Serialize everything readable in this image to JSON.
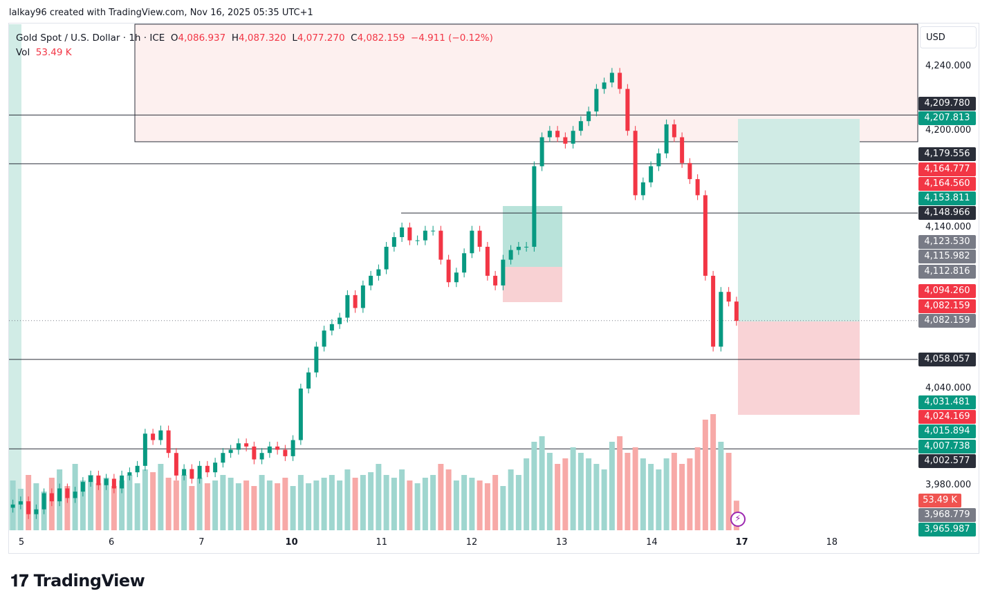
{
  "credit": "lalkay96 created with TradingView.com, Nov 16, 2025 05:35 UTC+1",
  "legend": {
    "symbol": "Gold Spot / U.S. Dollar · 1h · ICE",
    "o_label": "O",
    "o": "4,086.937",
    "h_label": "H",
    "h": "4,087.320",
    "l_label": "L",
    "l": "4,077.270",
    "c_label": "C",
    "c": "4,082.159",
    "change": "−4.911 (−0.12%)",
    "vol_label": "Vol",
    "vol": "53.49 K"
  },
  "currency": "USD",
  "logo": "TradingView",
  "colors": {
    "up": "#089981",
    "down": "#f23645",
    "vol_up": "#9fd6cf",
    "vol_down": "#f7a9a7",
    "drawing": "#2a2e39",
    "gray": "#787b86"
  },
  "chart_data": {
    "type": "candlestick",
    "symbol": "XAUUSD",
    "timeframe": "1h",
    "ylim": [
      3962,
      4250
    ],
    "x_ticks": [
      {
        "label": "5",
        "bold": false
      },
      {
        "label": "6",
        "bold": false
      },
      {
        "label": "7",
        "bold": false
      },
      {
        "label": "10",
        "bold": true
      },
      {
        "label": "11",
        "bold": false
      },
      {
        "label": "12",
        "bold": false
      },
      {
        "label": "13",
        "bold": false
      },
      {
        "label": "14",
        "bold": false
      },
      {
        "label": "17",
        "bold": true
      },
      {
        "label": "18",
        "bold": false
      }
    ],
    "y_ticks": [
      {
        "value": 4240,
        "label": "4,240.000"
      },
      {
        "value": 4200,
        "label": "4,200.000"
      },
      {
        "value": 4140,
        "label": "4,140.000"
      },
      {
        "value": 4040,
        "label": "4,040.000"
      },
      {
        "value": 3980,
        "label": "3,980.000"
      }
    ],
    "close": [
      3968,
      3970,
      3962,
      3965,
      3975,
      3970,
      3978,
      3972,
      3976,
      3982,
      3986,
      3980,
      3984,
      3978,
      3986,
      3988,
      3992,
      4012,
      4008,
      4014,
      4000,
      3986,
      3990,
      3984,
      3992,
      3988,
      3994,
      4000,
      4002,
      4006,
      4004,
      3996,
      4000,
      4004,
      4002,
      3998,
      4008,
      4040,
      4050,
      4066,
      4076,
      4080,
      4084,
      4098,
      4090,
      4104,
      4110,
      4114,
      4128,
      4134,
      4140,
      4132,
      4132,
      4138,
      4138,
      4120,
      4106,
      4112,
      4124,
      4138,
      4128,
      4110,
      4104,
      4120,
      4126,
      4128,
      4128,
      4178,
      4196,
      4200,
      4196,
      4192,
      4200,
      4206,
      4212,
      4226,
      4230,
      4236,
      4226,
      4200,
      4160,
      4168,
      4178,
      4186,
      4204,
      4196,
      4180,
      4170,
      4160,
      4110,
      4066,
      4100,
      4094,
      4082
    ],
    "volume_k": [
      90,
      75,
      100,
      85,
      70,
      95,
      110,
      80,
      120,
      90,
      100,
      85,
      95,
      80,
      90,
      100,
      85,
      110,
      105,
      120,
      95,
      90,
      100,
      80,
      95,
      85,
      90,
      100,
      95,
      85,
      90,
      80,
      100,
      90,
      85,
      95,
      80,
      100,
      85,
      90,
      95,
      100,
      90,
      110,
      95,
      100,
      105,
      120,
      100,
      95,
      110,
      90,
      85,
      95,
      100,
      120,
      110,
      90,
      100,
      95,
      90,
      85,
      100,
      80,
      110,
      100,
      130,
      160,
      170,
      140,
      120,
      130,
      150,
      140,
      130,
      120,
      110,
      160,
      170,
      140,
      150,
      130,
      120,
      110,
      130,
      140,
      120,
      130,
      150,
      200,
      210,
      160,
      140,
      53.49
    ],
    "horizontal_lines": [
      4209.78,
      4179.556,
      4148.966,
      4058.057,
      4002.577
    ],
    "price_labels": [
      {
        "text": "4,209.780",
        "color": "#2a2e39"
      },
      {
        "text": "4,207.813",
        "color": "#089981"
      },
      {
        "text": "4,179.556",
        "color": "#2a2e39"
      },
      {
        "text": "4,164.777",
        "color": "#f23645"
      },
      {
        "text": "4,164.560",
        "color": "#f23645"
      },
      {
        "text": "4,153.811",
        "color": "#089981"
      },
      {
        "text": "4,148.966",
        "color": "#2a2e39"
      },
      {
        "text": "4,123.530",
        "color": "#787b86"
      },
      {
        "text": "4,115.982",
        "color": "#787b86"
      },
      {
        "text": "4,112.816",
        "color": "#787b86"
      },
      {
        "text": "4,094.260",
        "color": "#f23645"
      },
      {
        "text": "4,082.159",
        "color": "#f23645"
      },
      {
        "text": "4,082.159",
        "color": "#787b86"
      },
      {
        "text": "4,058.057",
        "color": "#2a2e39"
      },
      {
        "text": "4,031.481",
        "color": "#089981"
      },
      {
        "text": "4,024.169",
        "color": "#f23645"
      },
      {
        "text": "4,015.894",
        "color": "#089981"
      },
      {
        "text": "4,007.738",
        "color": "#089981"
      },
      {
        "text": "4,002.577",
        "color": "#2a2e39"
      },
      {
        "text": "53.49 K",
        "color": "#f05350"
      },
      {
        "text": "3,968.779",
        "color": "#787b86"
      },
      {
        "text": "3,965.987",
        "color": "#089981"
      }
    ],
    "current_price": 4082.159
  }
}
